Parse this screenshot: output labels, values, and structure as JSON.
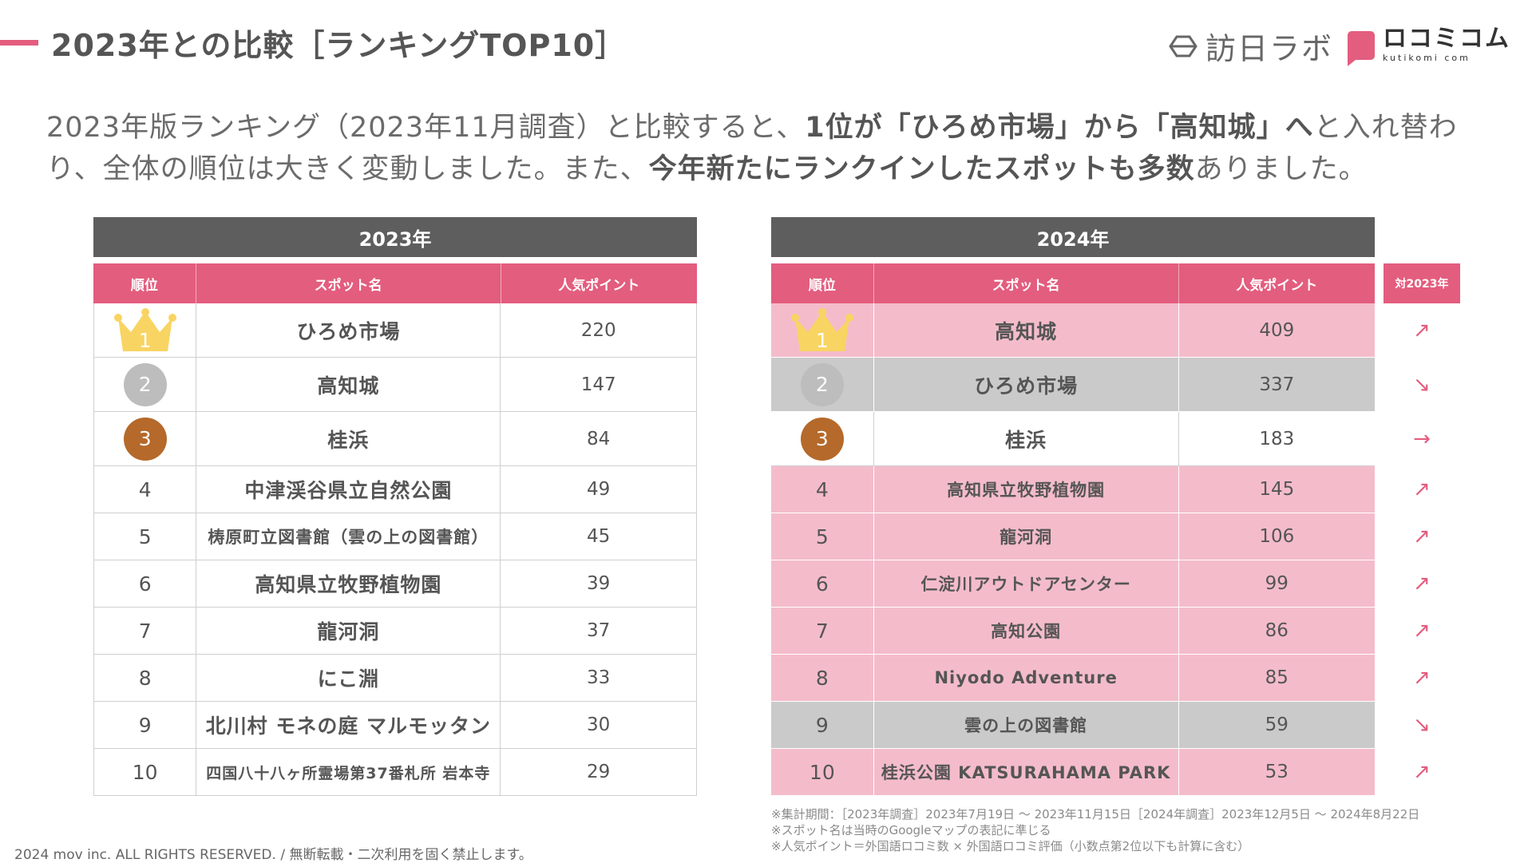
{
  "header": {
    "title": "2023年との比較［ランキングTOP10］",
    "logo_houjin": "訪日ラボ",
    "logo_kuchikomi": "ロコミコム",
    "logo_kuchikomi_sub": "kutikomi com",
    "accent_color": "#e35d7e"
  },
  "summary": {
    "part1": "2023年版ランキング（2023年11月調査）と比較すると、",
    "bold1": "1位が「ひろめ市場」から「高知城」へ",
    "part2": "と入れ替わり、全体の順位は大きく変動しました。また、",
    "bold2": "今年新たにランクインしたスポットも多数",
    "part3": "ありました。"
  },
  "columns": {
    "rank": "順位",
    "spot": "スポット名",
    "points": "人気ポイント",
    "vs": "対2023年"
  },
  "table_2023": {
    "year": "2023年",
    "rows": [
      {
        "rank": "1",
        "spot": "ひろめ市場",
        "points": "220"
      },
      {
        "rank": "2",
        "spot": "高知城",
        "points": "147"
      },
      {
        "rank": "3",
        "spot": "桂浜",
        "points": "84"
      },
      {
        "rank": "4",
        "spot": "中津渓谷県立自然公園",
        "points": "49"
      },
      {
        "rank": "5",
        "spot": "梼原町立図書館（雲の上の図書館）",
        "points": "45"
      },
      {
        "rank": "6",
        "spot": "高知県立牧野植物園",
        "points": "39"
      },
      {
        "rank": "7",
        "spot": "龍河洞",
        "points": "37"
      },
      {
        "rank": "8",
        "spot": "にこ淵",
        "points": "33"
      },
      {
        "rank": "9",
        "spot": "北川村 モネの庭 マルモッタン",
        "points": "30"
      },
      {
        "rank": "10",
        "spot": "四国八十八ヶ所霊場第37番札所 岩本寺",
        "points": "29"
      }
    ]
  },
  "table_2024": {
    "year": "2024年",
    "rows": [
      {
        "rank": "1",
        "spot": "高知城",
        "points": "409",
        "trend": "↗",
        "trend_name": "up-arrow-icon",
        "bg": "pink"
      },
      {
        "rank": "2",
        "spot": "ひろめ市場",
        "points": "337",
        "trend": "↘",
        "trend_name": "down-arrow-icon",
        "bg": "gray"
      },
      {
        "rank": "3",
        "spot": "桂浜",
        "points": "183",
        "trend": "→",
        "trend_name": "flat-arrow-icon",
        "bg": "white"
      },
      {
        "rank": "4",
        "spot": "高知県立牧野植物園",
        "points": "145",
        "trend": "↗",
        "trend_name": "up-arrow-icon",
        "bg": "pink"
      },
      {
        "rank": "5",
        "spot": "龍河洞",
        "points": "106",
        "trend": "↗",
        "trend_name": "up-arrow-icon",
        "bg": "pink"
      },
      {
        "rank": "6",
        "spot": "仁淀川アウトドアセンター",
        "points": "99",
        "trend": "↗",
        "trend_name": "up-arrow-icon",
        "bg": "pink"
      },
      {
        "rank": "7",
        "spot": "高知公園",
        "points": "86",
        "trend": "↗",
        "trend_name": "up-arrow-icon",
        "bg": "pink"
      },
      {
        "rank": "8",
        "spot": "Niyodo Adventure",
        "points": "85",
        "trend": "↗",
        "trend_name": "up-arrow-icon",
        "bg": "pink"
      },
      {
        "rank": "9",
        "spot": "雲の上の図書館",
        "points": "59",
        "trend": "↘",
        "trend_name": "down-arrow-icon",
        "bg": "gray"
      },
      {
        "rank": "10",
        "spot": "桂浜公園 KATSURAHAMA PARK",
        "points": "53",
        "trend": "↗",
        "trend_name": "up-arrow-icon",
        "bg": "pink"
      }
    ]
  },
  "notes": [
    "※集計期間：［2023年調査］2023年7月19日 〜 2023年11月15日［2024年調査］2023年12月5日 〜 2024年8月22日",
    "※スポット名は当時のGoogleマップの表記に準じる",
    "※人気ポイント＝外国語ロコミ数 × 外国語ロコミ評価（小数点第2位以下も計算に含む）"
  ],
  "footer": {
    "copyright": "2024 mov inc. ALL RIGHTS RESERVED. / 無断転載・二次利用を固く禁止します。"
  },
  "colors": {
    "pink_row": "#f4bccb",
    "gray_row": "#cacaca",
    "header_gray": "#5e5e5e",
    "gold": "#f8d462",
    "silver": "#bdbdbd",
    "bronze": "#b5692a"
  }
}
